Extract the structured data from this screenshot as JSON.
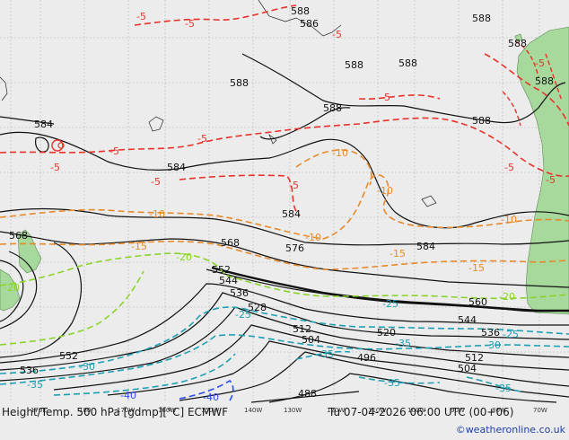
{
  "footer": {
    "title": "Height/Temp. 500 hPa [gdmp][°C] ECMWF",
    "valid": "Tu 07-04-2026 06:00 UTC (00+06)",
    "credit": "©weatheronline.co.uk"
  },
  "colors": {
    "ocean": "#ececec",
    "land": "#a6d99b",
    "height_contour": "#111111",
    "temp_red": "#e8322a",
    "temp_orange": "#e88a2a",
    "temp_green": "#8ad42a",
    "temp_teal": "#1ea0b4",
    "temp_blue": "#2a4ee8"
  },
  "longitude_labels": [
    "170E",
    "180",
    "170W",
    "160W",
    "150W",
    "140W",
    "130W",
    "120W",
    "110W",
    "100W",
    "90W",
    "80W",
    "70W"
  ],
  "height_labels": [
    "588",
    "586",
    "588",
    "588",
    "588",
    "588",
    "588",
    "588",
    "588",
    "588",
    "584",
    "584",
    "584",
    "584",
    "576",
    "568",
    "568",
    "560",
    "552",
    "552",
    "544",
    "544",
    "536",
    "536",
    "528",
    "520",
    "512",
    "512",
    "504",
    "504",
    "496",
    "488"
  ],
  "temperature_labels": [
    "-5",
    "-5",
    "-5",
    "-5",
    "-5",
    "-5",
    "-5",
    "-5",
    "-5",
    "-5",
    "-5",
    "-5",
    "-10",
    "-10",
    "-10",
    "-10",
    "-10",
    "-15",
    "-15",
    "-15",
    "-20",
    "-20",
    "-20",
    "-25",
    "-25",
    "-25",
    "-30",
    "-30",
    "-35",
    "-35",
    "-35",
    "-35",
    "-40",
    "-40"
  ]
}
